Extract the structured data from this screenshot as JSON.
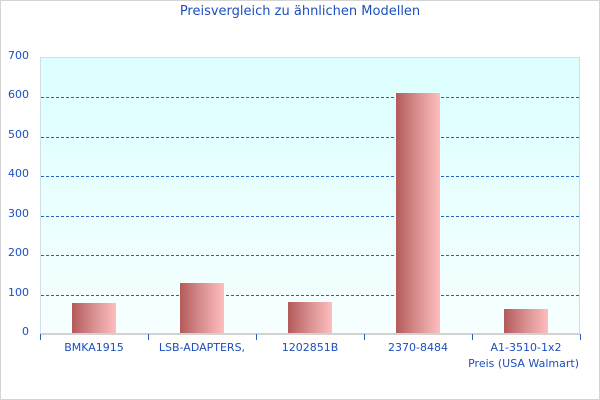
{
  "chart_data": {
    "type": "bar",
    "title": "Preisvergleich zu ähnlichen Modellen",
    "xlabel": "Preis (USA Walmart)",
    "ylabel": "",
    "categories": [
      "BMKA1915",
      "LSB-ADAPTERS,",
      "1202851B",
      "2370-8484",
      "A1-3510-1x2"
    ],
    "values": [
      75,
      126,
      78,
      608,
      60
    ],
    "ylim": [
      0,
      700
    ],
    "yticks": [
      "0",
      "100",
      "200",
      "300",
      "400",
      "500",
      "600",
      "700"
    ],
    "grid": true,
    "legend": "none",
    "colors": {
      "bar_dark": "#b45a5a",
      "bar_light": "#ffbebe",
      "text": "#1d4fbf",
      "grid": "#2a5fc2"
    }
  }
}
